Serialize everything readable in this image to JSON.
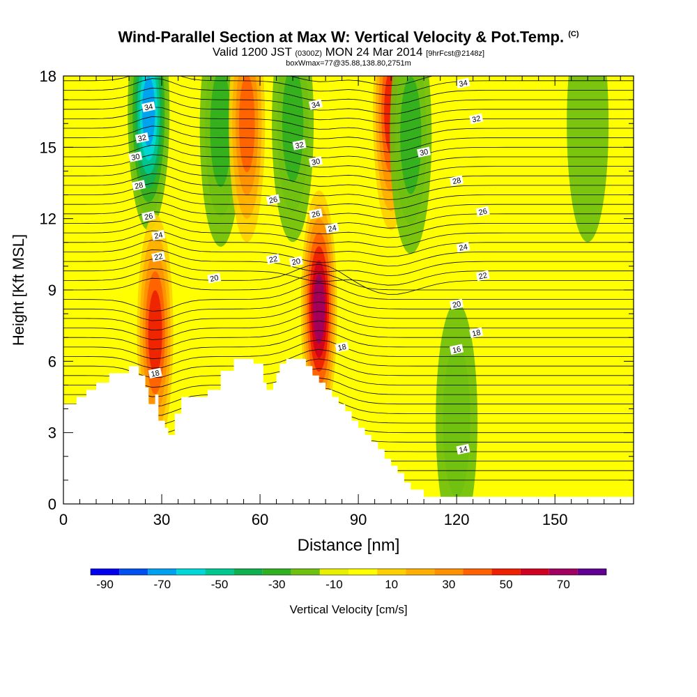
{
  "title": {
    "main": "Wind-Parallel Section at Max W: Vertical Velocity & Pot.Temp.",
    "copyright": "(C)",
    "valid_prefix": "Valid 1200 JST",
    "valid_utc": "(0300Z)",
    "valid_date": "MON 24 Mar 2014",
    "forecast_info": "[9hrFcst@2148z]",
    "box_info": "boxWmax=77@35.88,138.80,2751m"
  },
  "chart_data": {
    "type": "heatmap",
    "xlabel": "Distance [nm]",
    "ylabel": "Height [Kft MSL]",
    "xlim": [
      0,
      174
    ],
    "ylim": [
      0,
      18
    ],
    "x_ticks": [
      0,
      30,
      60,
      90,
      120,
      150
    ],
    "y_ticks": [
      0,
      3,
      6,
      9,
      12,
      15,
      18
    ],
    "colorbar": {
      "label": "Vertical Velocity [cm/s]",
      "levels": [
        -90,
        -80,
        -70,
        -60,
        -50,
        -40,
        -30,
        -20,
        -10,
        0,
        10,
        20,
        30,
        40,
        50,
        60,
        70,
        80
      ],
      "tick_labels": [
        -90,
        -70,
        -50,
        -30,
        -10,
        10,
        30,
        50,
        70
      ],
      "colors": [
        "#0000ee",
        "#0050f0",
        "#00a0f0",
        "#00d8d8",
        "#00c890",
        "#10b050",
        "#30b020",
        "#70c010",
        "#e8f000",
        "#ffff00",
        "#ffd000",
        "#ffb000",
        "#ff9000",
        "#ff6000",
        "#ee2000",
        "#d00020",
        "#a00060",
        "#600090"
      ]
    },
    "terrain_profile": {
      "x": [
        0,
        4,
        7,
        10,
        14,
        20,
        23,
        25,
        26,
        28,
        29,
        31,
        32,
        34,
        36,
        40,
        44,
        48,
        52,
        54,
        56,
        58,
        61,
        62,
        63,
        64,
        65,
        66,
        68,
        70,
        72,
        74,
        76,
        78,
        79,
        80,
        82,
        84,
        86,
        88,
        90,
        92,
        94,
        96,
        98,
        100,
        102,
        104,
        106,
        108,
        110,
        112,
        114,
        116,
        118,
        120,
        125,
        130,
        140,
        150,
        160,
        168,
        174
      ],
      "y": [
        4.2,
        4.5,
        4.8,
        5.1,
        5.5,
        5.8,
        5.4,
        4.9,
        4.2,
        4.6,
        3.5,
        3.2,
        2.9,
        3.8,
        4.5,
        4.5,
        4.8,
        5.6,
        6.1,
        6.1,
        6.1,
        5.9,
        5.1,
        4.8,
        4.8,
        5.1,
        5.5,
        5.9,
        6.1,
        6.1,
        6.1,
        5.8,
        5.4,
        5.1,
        5.1,
        4.8,
        4.5,
        4.2,
        3.9,
        3.5,
        3.2,
        2.9,
        2.6,
        2.3,
        1.9,
        1.6,
        1.3,
        0.9,
        0.6,
        0.6,
        0.3,
        0.3,
        0.3,
        0.3,
        0.3,
        0.3,
        0.3,
        0.3,
        0.3,
        0.3,
        0.3,
        0.3,
        0.3
      ]
    },
    "velocity_features": [
      {
        "x": 26,
        "y": 16.5,
        "w_cms": -70
      },
      {
        "x": 28,
        "y": 7.2,
        "w_cms": 55
      },
      {
        "x": 48,
        "y": 15.8,
        "w_cms": -30
      },
      {
        "x": 56,
        "y": 16.0,
        "w_cms": 40
      },
      {
        "x": 70,
        "y": 16.0,
        "w_cms": -30
      },
      {
        "x": 78,
        "y": 8.2,
        "w_cms": 75
      },
      {
        "x": 100,
        "y": 16.5,
        "w_cms": 55
      },
      {
        "x": 106,
        "y": 15.5,
        "w_cms": -30
      },
      {
        "x": 120,
        "y": 3.5,
        "w_cms": -20
      },
      {
        "x": 160,
        "y": 16.0,
        "w_cms": -15
      }
    ],
    "theta_contours": [
      {
        "level": "14",
        "label_at": [
          122,
          2.3
        ]
      },
      {
        "level": "16",
        "label_at": [
          120,
          6.5
        ]
      },
      {
        "level": "18",
        "label_at": [
          28,
          5.5
        ]
      },
      {
        "level": "18",
        "label_at": [
          85,
          6.6
        ]
      },
      {
        "level": "18",
        "label_at": [
          126,
          7.2
        ]
      },
      {
        "level": "20",
        "label_at": [
          46,
          9.5
        ]
      },
      {
        "level": "20",
        "label_at": [
          71,
          10.2
        ]
      },
      {
        "level": "20",
        "label_at": [
          120,
          8.4
        ]
      },
      {
        "level": "22",
        "label_at": [
          29,
          10.4
        ]
      },
      {
        "level": "22",
        "label_at": [
          64,
          10.3
        ]
      },
      {
        "level": "22",
        "label_at": [
          128,
          9.6
        ]
      },
      {
        "level": "24",
        "label_at": [
          29,
          11.3
        ]
      },
      {
        "level": "24",
        "label_at": [
          82,
          11.6
        ]
      },
      {
        "level": "24",
        "label_at": [
          122,
          10.8
        ]
      },
      {
        "level": "26",
        "label_at": [
          26,
          12.1
        ]
      },
      {
        "level": "26",
        "label_at": [
          64,
          12.8
        ]
      },
      {
        "level": "26",
        "label_at": [
          77,
          12.2
        ]
      },
      {
        "level": "26",
        "label_at": [
          128,
          12.3
        ]
      },
      {
        "level": "28",
        "label_at": [
          23,
          13.4
        ]
      },
      {
        "level": "28",
        "label_at": [
          120,
          13.6
        ]
      },
      {
        "level": "30",
        "label_at": [
          22,
          14.6
        ]
      },
      {
        "level": "30",
        "label_at": [
          77,
          14.4
        ]
      },
      {
        "level": "30",
        "label_at": [
          110,
          14.8
        ]
      },
      {
        "level": "32",
        "label_at": [
          24,
          15.4
        ]
      },
      {
        "level": "32",
        "label_at": [
          72,
          15.1
        ]
      },
      {
        "level": "32",
        "label_at": [
          126,
          16.2
        ]
      },
      {
        "level": "34",
        "label_at": [
          26,
          16.7
        ]
      },
      {
        "level": "34",
        "label_at": [
          77,
          16.8
        ]
      },
      {
        "level": "34",
        "label_at": [
          122,
          17.7
        ]
      }
    ],
    "colors": {
      "background_field": "#ffff00",
      "terrain_fill": "#ffffff",
      "contour_line": "#000000"
    }
  }
}
